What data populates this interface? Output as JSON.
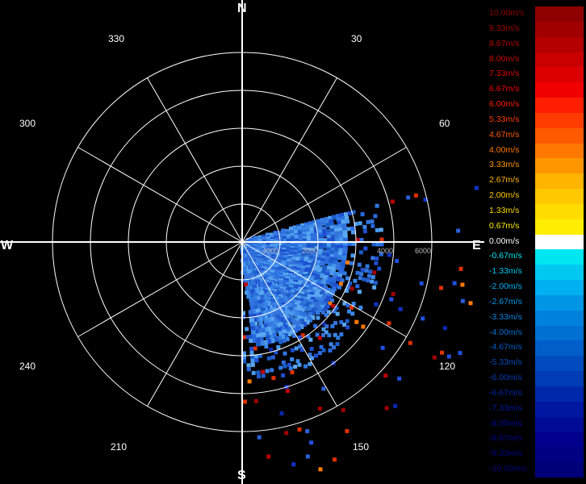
{
  "compass": {
    "n": "N",
    "e": "E",
    "s": "S",
    "w": "W"
  },
  "bearings": [
    "30",
    "60",
    "120",
    "150",
    "210",
    "240",
    "300",
    "330"
  ],
  "chart_data": {
    "type": "heatmap",
    "projection": "polar",
    "angle_ticks_deg": [
      30,
      60,
      120,
      150,
      210,
      240,
      300,
      330
    ],
    "range_ticks": [
      "4000",
      "2000",
      "4000",
      "6000"
    ],
    "rings": 5,
    "sector_deg": [
      75,
      180
    ],
    "colorscale": {
      "labels": [
        "10.00m/s",
        "9.33m/s",
        "8.67m/s",
        "8.00m/s",
        "7.33m/s",
        "6.67m/s",
        "6.00m/s",
        "5.33m/s",
        "4.67m/s",
        "4.00m/s",
        "3.33m/s",
        "2.67m/s",
        "2.00m/s",
        "1.33m/s",
        "0.67m/s",
        "0.00m/s",
        "-0.67m/s",
        "-1.33m/s",
        "-2.00m/s",
        "-2.67m/s",
        "-3.33m/s",
        "-4.00m/s",
        "-4.67m/s",
        "-5.33m/s",
        "-6.00m/s",
        "-6.67m/s",
        "-7.33m/s",
        "-8.00m/s",
        "-8.67m/s",
        "-9.33m/s",
        "-10.00m/s"
      ],
      "colors": [
        "#8e0000",
        "#a00000",
        "#b40000",
        "#c80000",
        "#dc0000",
        "#f00000",
        "#ff1e00",
        "#ff3c00",
        "#ff5a00",
        "#ff7800",
        "#ff9600",
        "#ffb400",
        "#ffc800",
        "#ffdc00",
        "#ffee00",
        "#ffffff",
        "#00e6f0",
        "#00c8f0",
        "#00b0f0",
        "#0096e6",
        "#0082dc",
        "#0070d2",
        "#005ec8",
        "#004cbe",
        "#003cb4",
        "#0028aa",
        "#0018a0",
        "#000c96",
        "#00008c",
        "#000082",
        "#000078"
      ],
      "label_colors": [
        "#8e0000",
        "#a00000",
        "#b40000",
        "#c80000",
        "#dc0000",
        "#f00000",
        "#ff1e00",
        "#ff3c00",
        "#ff5a00",
        "#ff7800",
        "#ff9600",
        "#ffb400",
        "#ffc800",
        "#ffdc00",
        "#ffee00",
        "#ffffff",
        "#00e6f0",
        "#00c8f0",
        "#00b0f0",
        "#0096e6",
        "#0082dc",
        "#0070d2",
        "#005ec8",
        "#004cbe",
        "#003cb4",
        "#0028aa",
        "#0018a0",
        "#000c96",
        "#00008c",
        "#000082",
        "#000078"
      ]
    }
  }
}
